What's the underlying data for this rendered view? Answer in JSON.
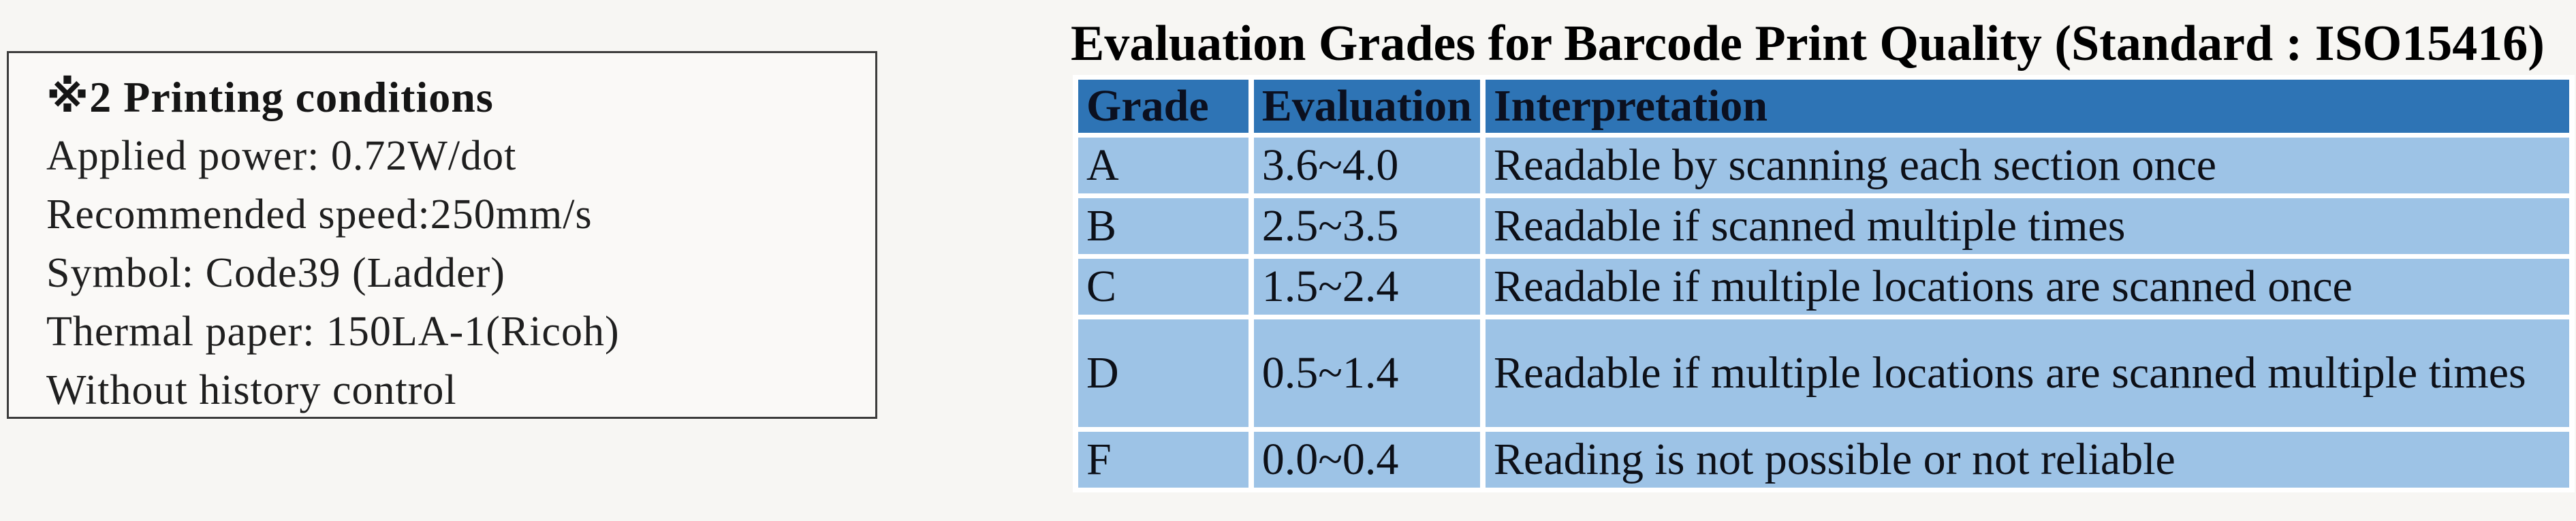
{
  "note_box": {
    "title": "※2 Printing conditions",
    "lines": [
      "Applied power: 0.72W/dot",
      "Recommended speed:250mm/s",
      "Symbol: Code39 (Ladder)",
      "Thermal paper: 150LA-1(Ricoh)",
      "Without history control"
    ]
  },
  "table": {
    "title": "Evaluation Grades for Barcode Print Quality (Standard : ISO15416)",
    "headers": [
      "Grade",
      "Evaluation",
      "Interpretation"
    ],
    "rows": [
      {
        "grade": "A",
        "evaluation": "3.6~4.0",
        "interpretation": "Readable by scanning each section once"
      },
      {
        "grade": "B",
        "evaluation": "2.5~3.5",
        "interpretation": "Readable if scanned multiple times"
      },
      {
        "grade": "C",
        "evaluation": "1.5~2.4",
        "interpretation": "Readable if multiple locations are scanned once"
      },
      {
        "grade": "D",
        "evaluation": "0.5~1.4",
        "interpretation": "Readable if multiple locations are scanned multiple times"
      },
      {
        "grade": "F",
        "evaluation": "0.0~0.4",
        "interpretation": "Reading is not possible or not reliable"
      }
    ],
    "colors": {
      "header_bg": "#2E74B5",
      "row_bg": "#9DC3E6",
      "gap": "#FFFFFF"
    }
  }
}
